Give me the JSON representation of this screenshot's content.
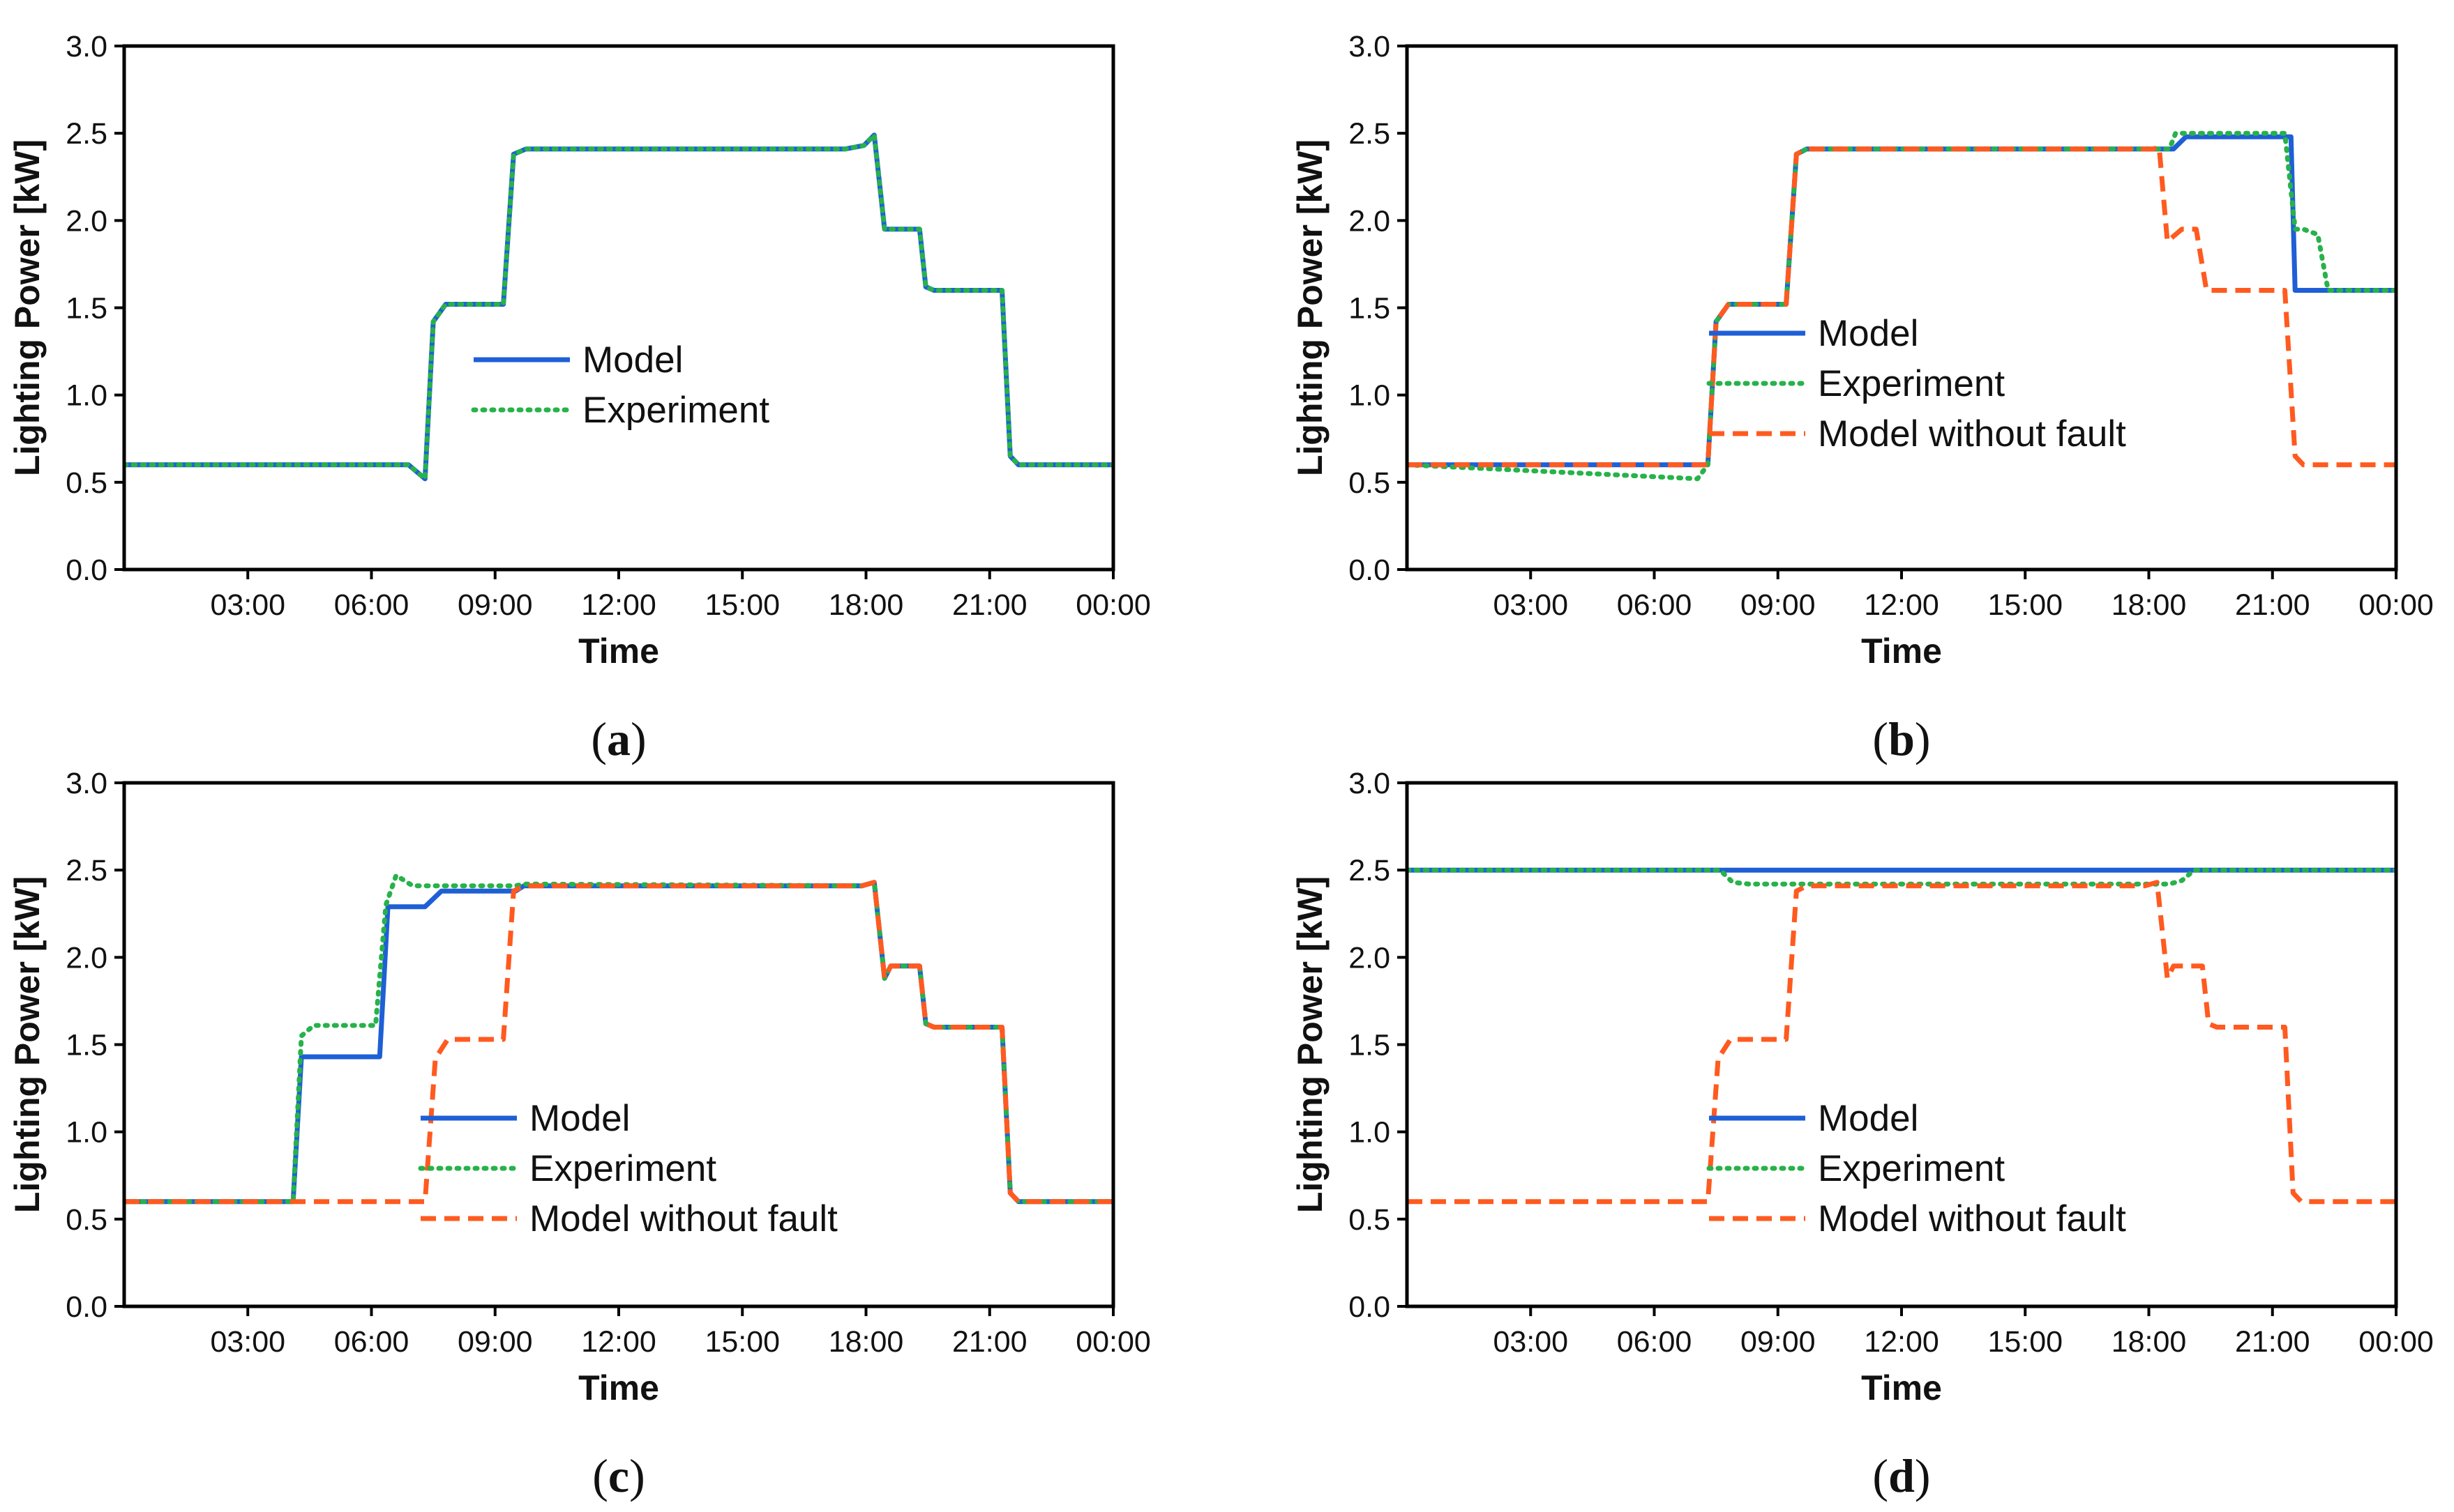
{
  "chart_data": [
    {
      "type": "line",
      "panel_label": "(a)",
      "panel_letter": "a",
      "xlabel": "Time",
      "ylabel": "Lighting Power [kW]",
      "x_unit": "hours",
      "xlim": [
        0,
        24
      ],
      "ylim": [
        0,
        3
      ],
      "x_ticks": [
        3,
        6,
        9,
        12,
        15,
        18,
        21,
        24
      ],
      "x_tick_labels": [
        "03:00",
        "06:00",
        "09:00",
        "12:00",
        "15:00",
        "18:00",
        "21:00",
        "00:00"
      ],
      "y_ticks": [
        0,
        0.5,
        1,
        1.5,
        2,
        2.5,
        3
      ],
      "y_tick_labels": [
        "0.0",
        "0.5",
        "1.0",
        "1.5",
        "2.0",
        "2.5",
        "3.0"
      ],
      "legend_position": "center",
      "series": [
        {
          "name": "Model",
          "color": "#1f5fd6",
          "style": "solid",
          "x": [
            0,
            6.5,
            6.9,
            7.3,
            7.5,
            7.8,
            9.2,
            9.45,
            9.75,
            17.5,
            17.95,
            18.2,
            18.45,
            18.55,
            19.3,
            19.45,
            19.65,
            21.3,
            21.5,
            21.7,
            24
          ],
          "y": [
            0.6,
            0.6,
            0.6,
            0.52,
            1.42,
            1.52,
            1.52,
            2.38,
            2.41,
            2.41,
            2.43,
            2.49,
            1.95,
            1.95,
            1.95,
            1.62,
            1.6,
            1.6,
            0.65,
            0.6,
            0.6
          ]
        },
        {
          "name": "Experiment",
          "color": "#27b24a",
          "style": "dotted",
          "x": [
            0,
            6.5,
            6.9,
            7.3,
            7.5,
            7.8,
            9.2,
            9.45,
            9.75,
            17.5,
            17.95,
            18.2,
            18.45,
            18.55,
            19.3,
            19.45,
            19.65,
            21.3,
            21.5,
            21.7,
            24
          ],
          "y": [
            0.6,
            0.6,
            0.6,
            0.52,
            1.42,
            1.52,
            1.52,
            2.38,
            2.41,
            2.41,
            2.43,
            2.49,
            1.95,
            1.95,
            1.95,
            1.62,
            1.6,
            1.6,
            0.65,
            0.6,
            0.6
          ]
        }
      ]
    },
    {
      "type": "line",
      "panel_label": "(b)",
      "panel_letter": "b",
      "xlabel": "Time",
      "ylabel": "Lighting Power [kW]",
      "x_unit": "hours",
      "xlim": [
        0,
        24
      ],
      "ylim": [
        0,
        3
      ],
      "x_ticks": [
        3,
        6,
        9,
        12,
        15,
        18,
        21,
        24
      ],
      "x_tick_labels": [
        "03:00",
        "06:00",
        "09:00",
        "12:00",
        "15:00",
        "18:00",
        "21:00",
        "00:00"
      ],
      "y_ticks": [
        0,
        0.5,
        1,
        1.5,
        2,
        2.5,
        3
      ],
      "y_tick_labels": [
        "0.0",
        "0.5",
        "1.0",
        "1.5",
        "2.0",
        "2.5",
        "3.0"
      ],
      "legend_position": "center-right",
      "series": [
        {
          "name": "Model",
          "color": "#1f5fd6",
          "style": "solid",
          "x": [
            0,
            7.3,
            7.5,
            7.8,
            9.2,
            9.45,
            9.7,
            18.6,
            18.9,
            21.45,
            21.55,
            24
          ],
          "y": [
            0.6,
            0.6,
            1.42,
            1.52,
            1.52,
            2.38,
            2.41,
            2.41,
            2.48,
            2.48,
            1.6,
            1.6
          ]
        },
        {
          "name": "Experiment",
          "color": "#27b24a",
          "style": "dotted",
          "x": [
            0,
            7.05,
            7.3,
            7.5,
            7.8,
            9.2,
            9.45,
            9.7,
            18.5,
            18.65,
            21.3,
            21.55,
            21.75,
            22.1,
            22.35,
            24
          ],
          "y": [
            0.6,
            0.52,
            0.6,
            1.42,
            1.52,
            1.52,
            2.38,
            2.41,
            2.41,
            2.5,
            2.5,
            1.95,
            1.95,
            1.92,
            1.6,
            1.6
          ]
        },
        {
          "name": "Model without fault",
          "color": "#ff5a1f",
          "style": "dashed",
          "x": [
            0,
            7.3,
            7.5,
            7.8,
            9.2,
            9.45,
            9.7,
            18.1,
            18.25,
            18.45,
            18.8,
            19.15,
            19.4,
            20.0,
            21.3,
            21.55,
            21.75,
            24
          ],
          "y": [
            0.6,
            0.6,
            1.42,
            1.52,
            1.52,
            2.38,
            2.41,
            2.41,
            2.42,
            1.88,
            1.95,
            1.95,
            1.6,
            1.6,
            1.6,
            0.65,
            0.6,
            0.6
          ]
        }
      ]
    },
    {
      "type": "line",
      "panel_label": "(c)",
      "panel_letter": "c",
      "xlabel": "Time",
      "ylabel": "Lighting Power [kW]",
      "x_unit": "hours",
      "xlim": [
        0,
        24
      ],
      "ylim": [
        0,
        3
      ],
      "x_ticks": [
        3,
        6,
        9,
        12,
        15,
        18,
        21,
        24
      ],
      "x_tick_labels": [
        "03:00",
        "06:00",
        "09:00",
        "12:00",
        "15:00",
        "18:00",
        "21:00",
        "00:00"
      ],
      "y_ticks": [
        0,
        0.5,
        1,
        1.5,
        2,
        2.5,
        3
      ],
      "y_tick_labels": [
        "0.0",
        "0.5",
        "1.0",
        "1.5",
        "2.0",
        "2.5",
        "3.0"
      ],
      "legend_position": "bottom-center",
      "series": [
        {
          "name": "Model",
          "color": "#1f5fd6",
          "style": "solid",
          "x": [
            0,
            4.1,
            4.3,
            6.2,
            6.4,
            7.3,
            7.7,
            9.5,
            9.7,
            17.9,
            18.2,
            18.45,
            18.6,
            19.3,
            19.45,
            19.65,
            21.3,
            21.5,
            21.7,
            24
          ],
          "y": [
            0.6,
            0.6,
            1.43,
            1.43,
            2.29,
            2.29,
            2.38,
            2.38,
            2.41,
            2.41,
            2.43,
            1.88,
            1.95,
            1.95,
            1.62,
            1.6,
            1.6,
            0.65,
            0.6,
            0.6
          ]
        },
        {
          "name": "Experiment",
          "color": "#27b24a",
          "style": "dotted",
          "x": [
            0,
            4.1,
            4.3,
            4.6,
            6.1,
            6.35,
            6.6,
            7.0,
            9.5,
            9.7,
            17.9,
            18.2,
            18.45,
            18.6,
            19.3,
            19.45,
            19.65,
            21.3,
            21.5,
            21.7,
            24
          ],
          "y": [
            0.6,
            0.6,
            1.55,
            1.61,
            1.61,
            2.3,
            2.47,
            2.41,
            2.41,
            2.42,
            2.41,
            2.43,
            1.88,
            1.95,
            1.95,
            1.62,
            1.6,
            1.6,
            0.65,
            0.6,
            0.6
          ]
        },
        {
          "name": "Model without fault",
          "color": "#ff5a1f",
          "style": "dashed",
          "x": [
            0,
            7.3,
            7.55,
            7.85,
            9.2,
            9.45,
            9.7,
            17.9,
            18.2,
            18.45,
            18.6,
            19.3,
            19.45,
            19.65,
            21.3,
            21.5,
            21.7,
            24
          ],
          "y": [
            0.6,
            0.6,
            1.42,
            1.53,
            1.53,
            2.38,
            2.41,
            2.41,
            2.43,
            1.88,
            1.95,
            1.95,
            1.62,
            1.6,
            1.6,
            0.65,
            0.6,
            0.6
          ]
        }
      ]
    },
    {
      "type": "line",
      "panel_label": "(d)",
      "panel_letter": "d",
      "xlabel": "Time",
      "ylabel": "Lighting Power [kW]",
      "x_unit": "hours",
      "xlim": [
        0,
        24
      ],
      "ylim": [
        0,
        3
      ],
      "x_ticks": [
        3,
        6,
        9,
        12,
        15,
        18,
        21,
        24
      ],
      "x_tick_labels": [
        "03:00",
        "06:00",
        "09:00",
        "12:00",
        "15:00",
        "18:00",
        "21:00",
        "00:00"
      ],
      "y_ticks": [
        0,
        0.5,
        1,
        1.5,
        2,
        2.5,
        3
      ],
      "y_tick_labels": [
        "0.0",
        "0.5",
        "1.0",
        "1.5",
        "2.0",
        "2.5",
        "3.0"
      ],
      "legend_position": "center-right",
      "series": [
        {
          "name": "Model",
          "color": "#1f5fd6",
          "style": "solid",
          "x": [
            0,
            24
          ],
          "y": [
            2.5,
            2.5
          ]
        },
        {
          "name": "Experiment",
          "color": "#27b24a",
          "style": "dotted",
          "x": [
            0,
            7.6,
            7.9,
            8.3,
            18.5,
            18.8,
            19.1,
            24
          ],
          "y": [
            2.5,
            2.5,
            2.43,
            2.42,
            2.42,
            2.44,
            2.5,
            2.5
          ]
        },
        {
          "name": "Model without fault",
          "color": "#ff5a1f",
          "style": "dashed",
          "x": [
            0,
            7.3,
            7.55,
            7.85,
            9.2,
            9.45,
            9.7,
            17.9,
            18.2,
            18.45,
            18.6,
            19.3,
            19.45,
            19.65,
            21.3,
            21.5,
            21.7,
            24
          ],
          "y": [
            0.6,
            0.6,
            1.42,
            1.53,
            1.53,
            2.38,
            2.41,
            2.41,
            2.43,
            1.88,
            1.95,
            1.95,
            1.62,
            1.6,
            1.6,
            0.65,
            0.6,
            0.6
          ]
        }
      ]
    }
  ]
}
